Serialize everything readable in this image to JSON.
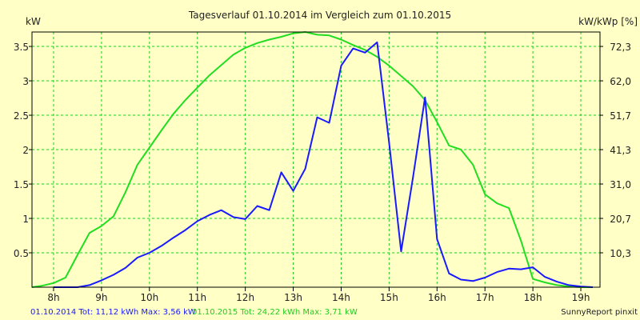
{
  "colors": {
    "background": "#ffffc6",
    "plot_background": "#ffffc6",
    "grid": "#22cc22",
    "series_2014": "#1a1aff",
    "series_2015": "#22dd22",
    "text": "#222222",
    "footer_2014": "#1a1aff",
    "footer_2015": "#22cc22"
  },
  "footer": {
    "series_2014_text": "01.10.2014 Tot: 11,12 kWh Max: 3,56 kW",
    "series_2015_text": "01.10.2015 Tot: 24,22 kWh Max: 3,71 kW",
    "brand": "SunnyReport pinxit"
  },
  "chart_data": {
    "type": "line",
    "title": "Tagesverlauf 01.10.2014 im Vergleich zum 01.10.2015",
    "ylabel_left": "kW",
    "ylabel_right": "kW/kWp [%]",
    "xlim": [
      7.55,
      19.4
    ],
    "ylim": [
      0,
      3.71
    ],
    "grid": true,
    "x_ticks": [
      {
        "value": 8,
        "label": "8h"
      },
      {
        "value": 9,
        "label": "9h"
      },
      {
        "value": 10,
        "label": "10h"
      },
      {
        "value": 11,
        "label": "11h"
      },
      {
        "value": 12,
        "label": "12h"
      },
      {
        "value": 13,
        "label": "13h"
      },
      {
        "value": 14,
        "label": "14h"
      },
      {
        "value": 15,
        "label": "15h"
      },
      {
        "value": 16,
        "label": "16h"
      },
      {
        "value": 17,
        "label": "17h"
      },
      {
        "value": 18,
        "label": "18h"
      },
      {
        "value": 19,
        "label": "19h"
      }
    ],
    "y_ticks_left": [
      {
        "value": 0.5,
        "label": "0.5"
      },
      {
        "value": 1,
        "label": "1"
      },
      {
        "value": 1.5,
        "label": "1.5"
      },
      {
        "value": 2,
        "label": "2"
      },
      {
        "value": 2.5,
        "label": "2.5"
      },
      {
        "value": 3,
        "label": "3"
      },
      {
        "value": 3.5,
        "label": "3.5"
      }
    ],
    "y_ticks_right": [
      {
        "value": 0.5,
        "label": "10,3"
      },
      {
        "value": 1,
        "label": "20,7"
      },
      {
        "value": 1.5,
        "label": "31,0"
      },
      {
        "value": 2,
        "label": "41,3"
      },
      {
        "value": 2.5,
        "label": "51,7"
      },
      {
        "value": 3,
        "label": "62,0"
      },
      {
        "value": 3.5,
        "label": "72,3"
      }
    ],
    "series": [
      {
        "name": "01.10.2014",
        "color": "#1a1aff",
        "x": [
          8.0,
          8.25,
          8.5,
          8.75,
          9.0,
          9.25,
          9.5,
          9.75,
          10.0,
          10.25,
          10.5,
          10.75,
          11.0,
          11.25,
          11.5,
          11.75,
          12.0,
          12.25,
          12.5,
          12.75,
          13.0,
          13.25,
          13.5,
          13.75,
          14.0,
          14.25,
          14.5,
          14.75,
          15.0,
          15.25,
          15.5,
          15.75,
          16.0,
          16.25,
          16.5,
          16.75,
          17.0,
          17.25,
          17.5,
          17.75,
          18.0,
          18.25,
          18.5,
          18.75,
          19.0,
          19.25
        ],
        "y": [
          0.0,
          0.0,
          0.0,
          0.03,
          0.1,
          0.18,
          0.28,
          0.43,
          0.5,
          0.6,
          0.72,
          0.83,
          0.96,
          1.05,
          1.12,
          1.02,
          0.99,
          1.18,
          1.12,
          1.67,
          1.4,
          1.72,
          2.47,
          2.39,
          3.22,
          3.47,
          3.41,
          3.56,
          2.1,
          0.52,
          1.6,
          2.76,
          0.7,
          0.2,
          0.11,
          0.09,
          0.14,
          0.22,
          0.27,
          0.26,
          0.29,
          0.15,
          0.08,
          0.03,
          0.01,
          0.0
        ]
      },
      {
        "name": "01.10.2015",
        "color": "#22dd22",
        "x": [
          7.55,
          7.75,
          8.0,
          8.25,
          8.5,
          8.75,
          9.0,
          9.25,
          9.5,
          9.75,
          10.0,
          10.25,
          10.5,
          10.75,
          11.0,
          11.25,
          11.5,
          11.75,
          12.0,
          12.25,
          12.5,
          12.75,
          13.0,
          13.25,
          13.5,
          13.75,
          14.0,
          14.25,
          14.5,
          14.75,
          15.0,
          15.25,
          15.5,
          15.75,
          16.0,
          16.25,
          16.5,
          16.75,
          17.0,
          17.25,
          17.5,
          17.75,
          18.0,
          18.25,
          18.5,
          18.75,
          19.0,
          19.25
        ],
        "y": [
          0.0,
          0.02,
          0.06,
          0.14,
          0.47,
          0.79,
          0.89,
          1.03,
          1.38,
          1.78,
          2.03,
          2.28,
          2.52,
          2.72,
          2.9,
          3.08,
          3.23,
          3.38,
          3.48,
          3.55,
          3.6,
          3.64,
          3.69,
          3.71,
          3.67,
          3.66,
          3.6,
          3.52,
          3.45,
          3.35,
          3.22,
          3.07,
          2.92,
          2.72,
          2.4,
          2.06,
          2.0,
          1.78,
          1.35,
          1.22,
          1.15,
          0.68,
          0.12,
          0.07,
          0.03,
          0.01,
          0.0,
          0.0
        ]
      }
    ]
  }
}
